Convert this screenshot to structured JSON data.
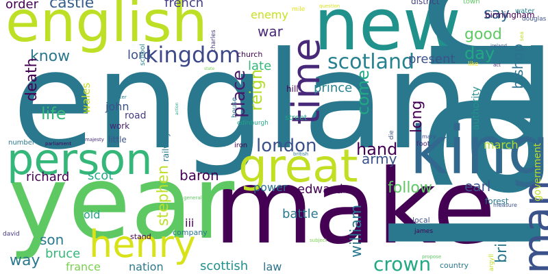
{
  "word_cloud": {
    "words": [
      {
        "text": "england",
        "color": "#2a788e"
      },
      {
        "text": "make",
        "color": "#440154"
      },
      {
        "text": "year",
        "color": "#5ec962"
      },
      {
        "text": "new",
        "color": "#21918c"
      },
      {
        "text": "english",
        "color": "#bddf26"
      },
      {
        "text": "land",
        "color": "#2a788e"
      },
      {
        "text": "king",
        "color": "#31688e"
      },
      {
        "text": "great",
        "color": "#c2df23"
      },
      {
        "text": "person",
        "color": "#35b779"
      },
      {
        "text": "henry",
        "color": "#d8e219"
      },
      {
        "text": "man",
        "color": "#3b528b"
      },
      {
        "text": "time",
        "color": "#482878"
      },
      {
        "text": "kingdom",
        "color": "#3e4989"
      },
      {
        "text": "scotland",
        "color": "#26828e"
      },
      {
        "text": "london",
        "color": "#3b528b"
      },
      {
        "text": "place",
        "color": "#48186a"
      },
      {
        "text": "reign",
        "color": "#b5de2b"
      },
      {
        "text": "crown",
        "color": "#22a884"
      },
      {
        "text": "william",
        "color": "#2a788e"
      },
      {
        "text": "castle",
        "color": "#355f8d"
      },
      {
        "text": "order",
        "color": "#440154"
      },
      {
        "text": "french",
        "color": "#433e85"
      },
      {
        "text": "late",
        "color": "#35b779"
      },
      {
        "text": "war",
        "color": "#482878"
      },
      {
        "text": "enemy",
        "color": "#c8e020"
      },
      {
        "text": "say",
        "color": "#31688e"
      },
      {
        "text": "good",
        "color": "#5ec962"
      },
      {
        "text": "day",
        "color": "#22a884"
      },
      {
        "text": "bishop",
        "color": "#2c728e"
      },
      {
        "text": "know",
        "color": "#2a788e"
      },
      {
        "text": "lord",
        "color": "#3b528b"
      },
      {
        "text": "death",
        "color": "#440154"
      },
      {
        "text": "present",
        "color": "#3b528b"
      },
      {
        "text": "life",
        "color": "#35b779"
      },
      {
        "text": "come",
        "color": "#22a884"
      },
      {
        "text": "long",
        "color": "#440154"
      },
      {
        "text": "prince",
        "color": "#26828e"
      },
      {
        "text": "wales",
        "color": "#c2df23"
      },
      {
        "text": "john",
        "color": "#3b528b"
      },
      {
        "text": "road",
        "color": "#443983"
      },
      {
        "text": "work",
        "color": "#482173"
      },
      {
        "text": "hand",
        "color": "#440154"
      },
      {
        "text": "army",
        "color": "#3b528b"
      },
      {
        "text": "authority",
        "color": "#21918c"
      },
      {
        "text": "march",
        "color": "#b5de2b"
      },
      {
        "text": "birmingham",
        "color": "#440154"
      },
      {
        "text": "government",
        "color": "#bddf26"
      },
      {
        "text": "richard",
        "color": "#440154"
      },
      {
        "text": "scot",
        "color": "#22a884"
      },
      {
        "text": "stephen",
        "color": "#bddf26"
      },
      {
        "text": "baron",
        "color": "#440154"
      },
      {
        "text": "follow",
        "color": "#5ec962"
      },
      {
        "text": "earl",
        "color": "#3b528b"
      },
      {
        "text": "bring",
        "color": "#2a788e"
      },
      {
        "text": "edward",
        "color": "#440154"
      },
      {
        "text": "power",
        "color": "#2c728e"
      },
      {
        "text": "son",
        "color": "#2a788e"
      },
      {
        "text": "iii",
        "color": "#440154"
      },
      {
        "text": "battle",
        "color": "#2a788e"
      },
      {
        "text": "way",
        "color": "#2a788e"
      },
      {
        "text": "bruce",
        "color": "#35b779"
      },
      {
        "text": "france",
        "color": "#7ad151"
      },
      {
        "text": "nation",
        "color": "#2a788e"
      },
      {
        "text": "scottish",
        "color": "#21918c"
      },
      {
        "text": "law",
        "color": "#2c728e"
      },
      {
        "text": "old",
        "color": "#20a386"
      },
      {
        "text": "district",
        "color": "#433e85"
      },
      {
        "text": "town",
        "color": "#5ec962"
      },
      {
        "text": "water",
        "color": "#26828e"
      },
      {
        "text": "douglas",
        "color": "#3b528b"
      },
      {
        "text": "school",
        "color": "#26828e"
      },
      {
        "text": "charles",
        "color": "#433e85"
      },
      {
        "text": "church",
        "color": "#440154"
      },
      {
        "text": "mile",
        "color": "#e2e418"
      },
      {
        "text": "sea",
        "color": "#bddf26"
      },
      {
        "text": "ireland",
        "color": "#3b528b"
      },
      {
        "text": "like",
        "color": "#fde725"
      },
      {
        "text": "act",
        "color": "#482878"
      },
      {
        "text": "hill",
        "color": "#440154"
      },
      {
        "text": "house",
        "color": "#2a788e"
      },
      {
        "text": "street",
        "color": "#20a386"
      },
      {
        "text": "edinburgh",
        "color": "#22a884"
      },
      {
        "text": "die",
        "color": "#3b528b"
      },
      {
        "text": "mary",
        "color": "#3b528b"
      },
      {
        "text": "foot",
        "color": "#482878"
      },
      {
        "text": "iron",
        "color": "#440154"
      },
      {
        "text": "little",
        "color": "#3b528b"
      },
      {
        "text": "railway",
        "color": "#2a788e"
      },
      {
        "text": "number",
        "color": "#2a788e"
      },
      {
        "text": "parliament",
        "color": "#440154"
      },
      {
        "text": "majesty",
        "color": "#482878"
      },
      {
        "text": "minister",
        "color": "#2a788e"
      },
      {
        "text": "stand",
        "color": "#440154"
      },
      {
        "text": "company",
        "color": "#2a788e"
      },
      {
        "text": "david",
        "color": "#443983"
      },
      {
        "text": "forest",
        "color": "#2a788e"
      },
      {
        "text": "measure",
        "color": "#3b528b"
      },
      {
        "text": "local",
        "color": "#3b528b"
      },
      {
        "text": "james",
        "color": "#440154"
      },
      {
        "text": "country",
        "color": "#2a788e"
      },
      {
        "text": "subject",
        "color": "#7ad151"
      },
      {
        "text": "propose",
        "color": "#5ec962"
      },
      {
        "text": "argyll",
        "color": "#bddf26"
      },
      {
        "text": "general",
        "color": "#5ec962"
      },
      {
        "text": "british",
        "color": "#2a788e"
      },
      {
        "text": "question",
        "color": "#d8e219"
      },
      {
        "text": "duke",
        "color": "#2c728e"
      },
      {
        "text": "state",
        "color": "#7ad151"
      },
      {
        "text": "action",
        "color": "#22a884"
      }
    ]
  }
}
